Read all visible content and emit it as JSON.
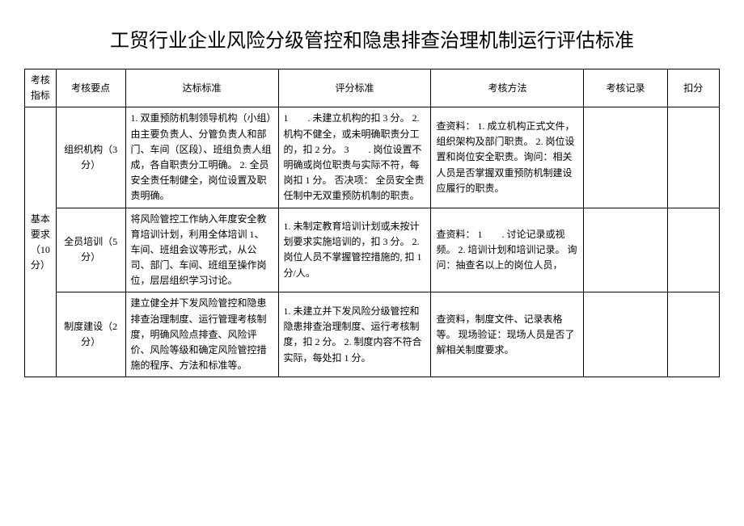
{
  "title": "工贸行业企业风险分级管控和隐患排查治理机制运行评估标准",
  "headers": {
    "indicator": "考核指标",
    "point": "考核要点",
    "standard": "达标标准",
    "scoring": "评分标准",
    "method": "考核方法",
    "record": "考核记录",
    "deduct": "扣分"
  },
  "group": {
    "indicator": "基本要求（10分）"
  },
  "rows": [
    {
      "point": "组织机构（3分）",
      "standard": "1. 双重预防机制领导机构（小组）由主要负责人、分管负责人和部门、车间（区段）、班组负责人组成，各自职责分工明确。\n2. 全员安全责任制健全，岗位设置及职责明确。",
      "scoring": "1　　. 未建立机构的扣 3 分。\n2. 机构不健全，或未明确职责分工的，扣 2 分。\n3　　. 岗位设置不明确或岗位职责与实际不符，每岗扣 1 分。\n否决项：\n全员安全责任制中无双重预防机制的职责。",
      "method": "查资料：\n1. 成立机构正式文件，组织架构及部门职责。\n2. 岗位设置和岗位安全职责。询问：相关人员是否掌握双重预防机制建设应履行的职责。",
      "record": "",
      "deduct": ""
    },
    {
      "point": "全员培训（5分）",
      "standard": "将风险管控工作纳入年度安全教育培训计划，利用全体培训 1、车间、班组会议等形式，从公司、部门、车间、班组至操作岗位，层层组织学习讨论。",
      "scoring": "1. 未制定教育培训计划或未按计划要求实施培训的，扣 3 分。\n2. 岗位人员不掌握管控措施的, 扣 1 分/人。",
      "method": "查资料：\n1　　. 讨论记录或视频。\n2. 培训计划和培训记录。\n询问：抽查名以上的岗位人员，",
      "record": "",
      "deduct": ""
    },
    {
      "point": "制度建设（2分）",
      "standard": "建立健全并下发风险管控和隐患排查治理制度、运行管理考核制度，明确风险点排查、风险评价、风险等级和确定风险管控措施的程序、方法和标准等。",
      "scoring": "1. 未建立并下发风险分级管控和隐患排查治理制度、运行考核制度，扣 2 分。\n2. 制度内容不符合实际，每处扣 1 分。",
      "method": "查资料，制度文件、记录表格等。\n现场验证：现场人员是否了解相关制度要求。",
      "record": "",
      "deduct": ""
    }
  ]
}
